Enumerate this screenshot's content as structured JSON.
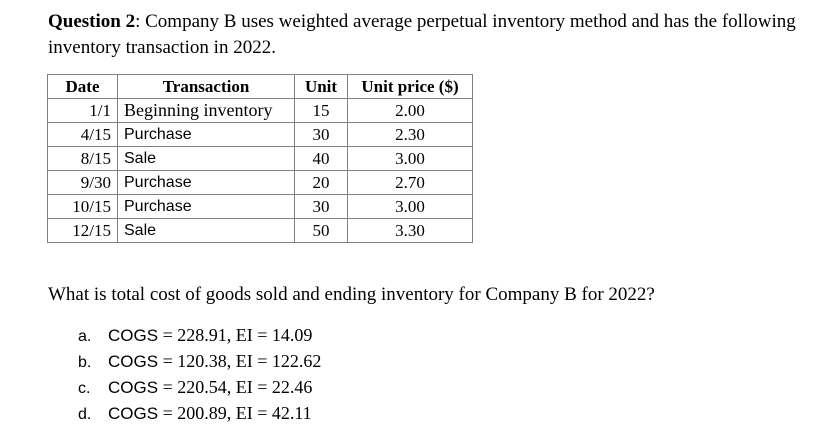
{
  "question": {
    "label": "Question 2",
    "text": ": Company B uses weighted average perpetual inventory method and has the following inventory transaction in 2022."
  },
  "table": {
    "headers": [
      "Date",
      "Transaction",
      "Unit",
      "Unit price ($)"
    ],
    "rows": [
      {
        "date": "1/1",
        "transaction": "Beginning inventory",
        "unit": "15",
        "price": "2.00"
      },
      {
        "date": "4/15",
        "transaction": "Purchase",
        "unit": "30",
        "price": "2.30"
      },
      {
        "date": "8/15",
        "transaction": "Sale",
        "unit": "40",
        "price": "3.00"
      },
      {
        "date": "9/30",
        "transaction": "Purchase",
        "unit": "20",
        "price": "2.70"
      },
      {
        "date": "10/15",
        "transaction": "Purchase",
        "unit": "30",
        "price": "3.00"
      },
      {
        "date": "12/15",
        "transaction": "Sale",
        "unit": "50",
        "price": "3.30"
      }
    ]
  },
  "prompt": "What is total cost of goods sold and ending inventory for Company B for 2022?",
  "options": [
    {
      "letter": "a.",
      "cogs": "COGS",
      "rest": " = 228.91, EI = 14.09"
    },
    {
      "letter": "b.",
      "cogs": "COGS",
      "rest": " = 120.38, EI = 122.62"
    },
    {
      "letter": "c.",
      "cogs": "COGS",
      "rest": " = 220.54, EI = 22.46"
    },
    {
      "letter": "d.",
      "cogs": "COGS",
      "rest": " = 200.89, EI = 42.11"
    }
  ]
}
